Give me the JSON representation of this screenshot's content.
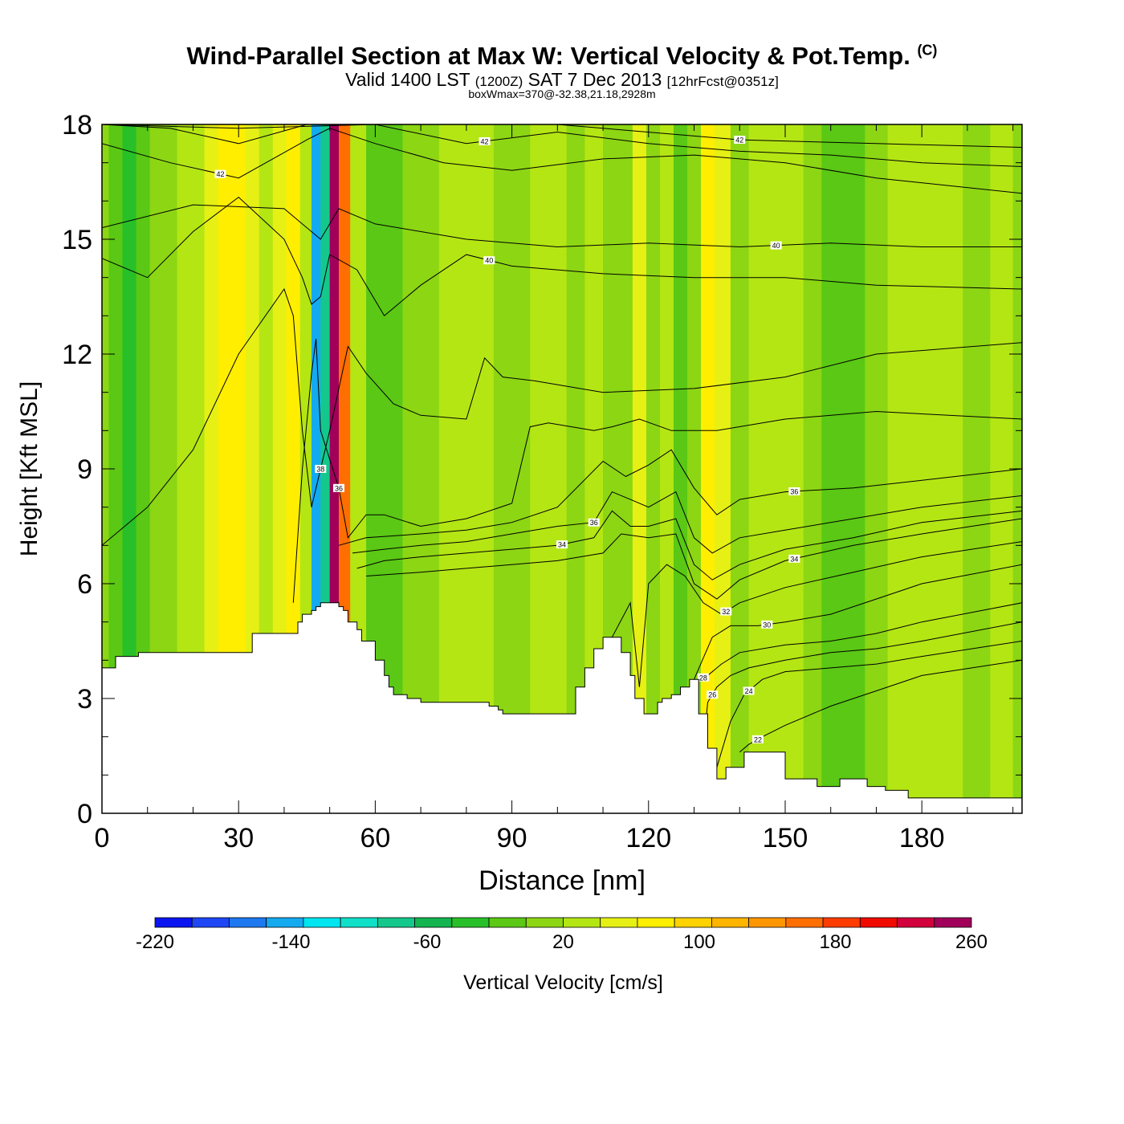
{
  "title": {
    "main": "Wind-Parallel Section at Max W: Vertical Velocity & Pot.Temp.",
    "copyright": "(C)",
    "valid_prefix": "Valid 1400 LST",
    "valid_utc": "(1200Z)",
    "valid_date": "SAT 7 Dec 2013",
    "forecast": "[12hrFcst@0351z]",
    "subtitle": "boxWmax=370@-32.38,21.18,2928m"
  },
  "chart_data": {
    "type": "heatmap",
    "xlabel": "Distance [nm]",
    "ylabel": "Height [Kft MSL]",
    "xlim": [
      0,
      202
    ],
    "ylim": [
      0,
      18
    ],
    "xticks": [
      0,
      30,
      60,
      90,
      120,
      150,
      180
    ],
    "yticks": [
      0,
      3,
      6,
      9,
      12,
      15,
      18
    ],
    "colorbar": {
      "label": "Vertical Velocity [cm/s]",
      "min": -220,
      "max": 260,
      "step": 20,
      "tick_labels": [
        "-220",
        "-140",
        "-60",
        "20",
        "100",
        "180",
        "260"
      ],
      "colors": [
        "#0a14f0",
        "#1e46f5",
        "#1e78f0",
        "#14aaf0",
        "#00e6f0",
        "#10e0c8",
        "#14c88c",
        "#14b450",
        "#28c028",
        "#5ac814",
        "#8cd614",
        "#b4e614",
        "#e6f014",
        "#ffee00",
        "#ffd200",
        "#ffb400",
        "#ff9600",
        "#ff6e00",
        "#ff3c00",
        "#f00a00",
        "#d2003c",
        "#a0005a"
      ]
    },
    "columns": {
      "x": [
        0,
        3,
        6,
        9,
        12,
        15,
        18,
        21,
        24,
        27,
        30,
        33,
        36,
        39,
        42,
        45,
        47,
        49,
        51,
        53,
        56,
        60,
        64,
        68,
        72,
        76,
        80,
        84,
        88,
        92,
        96,
        100,
        104,
        108,
        112,
        115,
        118,
        121,
        124,
        127,
        130,
        133,
        136,
        140,
        144,
        148,
        152,
        156,
        160,
        165,
        170,
        175,
        180,
        186,
        192,
        198,
        202
      ],
      "w_cm_s": [
        -20,
        -40,
        -50,
        -40,
        -20,
        -10,
        0,
        10,
        30,
        50,
        50,
        30,
        10,
        30,
        50,
        0,
        -150,
        -90,
        200,
        120,
        0,
        -40,
        -30,
        -20,
        -10,
        0,
        0,
        10,
        -10,
        -20,
        0,
        0,
        -10,
        0,
        -20,
        -10,
        30,
        -20,
        0,
        -40,
        -20,
        40,
        20,
        -20,
        0,
        0,
        0,
        -20,
        -30,
        -40,
        -20,
        0,
        10,
        0,
        -10,
        0,
        -10
      ]
    },
    "terrain": {
      "x": [
        0,
        2,
        3,
        8,
        20,
        26,
        33,
        37,
        42,
        43,
        44,
        45,
        46,
        47,
        48,
        49,
        50,
        51,
        52,
        53,
        54,
        56,
        57,
        60,
        62,
        63,
        64,
        66,
        67,
        70,
        75,
        80,
        85,
        87,
        88,
        95,
        100,
        102,
        104,
        106,
        108,
        110,
        112,
        114,
        116,
        117,
        119,
        120,
        121,
        122,
        123,
        125,
        127,
        129,
        131,
        133,
        135,
        137,
        141,
        145,
        150,
        155,
        157,
        162,
        168,
        172,
        177,
        182,
        190,
        202
      ],
      "h_kft": [
        3.8,
        3.8,
        4.1,
        4.2,
        4.2,
        4.2,
        4.7,
        4.7,
        4.7,
        5.0,
        5.2,
        5.2,
        5.3,
        5.4,
        5.5,
        5.5,
        5.5,
        5.5,
        5.4,
        5.3,
        5.0,
        4.8,
        4.5,
        4.0,
        3.6,
        3.3,
        3.1,
        3.1,
        3.0,
        2.9,
        2.9,
        2.9,
        2.8,
        2.7,
        2.6,
        2.6,
        2.6,
        2.6,
        3.3,
        3.8,
        4.3,
        4.6,
        4.6,
        4.2,
        3.6,
        3.0,
        2.6,
        2.6,
        2.6,
        2.9,
        3.0,
        3.1,
        3.3,
        3.5,
        2.6,
        1.7,
        0.9,
        1.2,
        1.6,
        1.6,
        0.9,
        0.9,
        0.7,
        0.9,
        0.7,
        0.6,
        0.4,
        0.4,
        0.4,
        0.4
      ]
    },
    "theta_contours": [
      {
        "label": "42",
        "x": [
          0,
          15,
          30,
          45,
          50,
          60,
          75,
          90,
          110,
          130,
          150,
          170,
          202
        ],
        "h_kft": [
          17.5,
          17.0,
          16.6,
          17.6,
          17.9,
          17.5,
          17.0,
          16.8,
          17.1,
          17.2,
          17.0,
          16.6,
          16.2
        ],
        "label_x": 26
      },
      {
        "label": "42",
        "x": [
          0,
          15,
          30,
          45,
          60,
          80,
          100,
          120,
          140,
          160,
          180,
          202
        ],
        "h_kft": [
          18.0,
          17.9,
          17.5,
          18.0,
          18.0,
          17.5,
          17.8,
          17.5,
          17.3,
          17.2,
          17.0,
          16.9
        ],
        "label_x": 84
      },
      {
        "label": "42",
        "x": [
          0,
          30,
          60,
          100,
          140,
          170,
          202
        ],
        "h_kft": [
          18.0,
          17.9,
          18.0,
          18.0,
          17.6,
          17.5,
          17.4
        ],
        "label_x": 140
      },
      {
        "label": "40",
        "x": [
          0,
          10,
          20,
          30,
          40,
          44,
          46,
          48,
          50,
          56,
          62,
          70,
          80,
          90,
          110,
          130,
          150,
          170,
          202
        ],
        "h_kft": [
          14.5,
          14.0,
          15.2,
          16.1,
          15.0,
          14.0,
          13.3,
          13.5,
          14.6,
          14.2,
          13.0,
          13.8,
          14.6,
          14.3,
          14.1,
          14.0,
          14.0,
          13.8,
          13.7
        ],
        "label_x": 85
      },
      {
        "label": "40",
        "x": [
          0,
          20,
          40,
          48,
          52,
          60,
          80,
          100,
          120,
          140,
          160,
          180,
          202
        ],
        "h_kft": [
          15.3,
          15.9,
          15.8,
          15.0,
          15.8,
          15.4,
          15.0,
          14.8,
          14.9,
          14.8,
          14.9,
          14.8,
          14.8
        ],
        "label_x": 148
      },
      {
        "label": "38",
        "x": [
          0,
          10,
          20,
          30,
          40,
          42,
          44,
          46,
          48,
          50,
          54,
          58,
          64,
          70,
          80,
          84,
          88,
          95,
          110,
          130,
          150,
          170,
          202
        ],
        "h_kft": [
          7.0,
          8.0,
          9.5,
          12.0,
          13.7,
          13.0,
          10.0,
          8.0,
          9.0,
          10.0,
          12.2,
          11.5,
          10.7,
          10.4,
          10.3,
          11.9,
          11.4,
          11.3,
          11.0,
          11.1,
          11.4,
          12.0,
          12.3
        ],
        "label_x": 48
      },
      {
        "label": "36",
        "x": [
          42,
          44,
          46,
          47,
          48,
          52,
          54,
          58,
          62,
          70,
          80,
          90,
          94,
          98,
          108,
          112,
          118,
          125,
          135,
          150,
          170,
          202
        ],
        "h_kft": [
          5.5,
          9.0,
          11.5,
          12.4,
          10.0,
          8.5,
          7.2,
          7.8,
          7.8,
          7.5,
          7.7,
          8.1,
          10.1,
          10.2,
          10.0,
          10.1,
          10.3,
          10.0,
          10.0,
          10.3,
          10.5,
          10.3
        ],
        "label_x": 52
      },
      {
        "label": "36",
        "x": [
          52,
          58,
          70,
          80,
          90,
          100,
          110,
          115,
          120,
          125,
          130,
          135,
          140,
          150,
          165,
          180,
          202
        ],
        "h_kft": [
          7.0,
          7.2,
          7.3,
          7.4,
          7.6,
          8.0,
          9.2,
          8.8,
          9.1,
          9.5,
          8.5,
          7.8,
          8.2,
          8.4,
          8.5,
          8.7,
          9.0
        ],
        "label_x": 152
      },
      {
        "label": "36",
        "x": [
          55,
          62,
          70,
          80,
          90,
          100,
          108,
          112,
          116,
          120,
          126,
          130,
          134,
          140,
          150,
          165,
          180,
          202
        ],
        "h_kft": [
          6.8,
          6.9,
          7.0,
          7.1,
          7.3,
          7.5,
          7.6,
          8.4,
          8.2,
          8.0,
          8.4,
          7.2,
          6.8,
          7.2,
          7.4,
          7.7,
          8.0,
          8.3
        ],
        "label_x": 108
      },
      {
        "label": "34",
        "x": [
          56,
          62,
          70,
          80,
          90,
          100,
          108,
          112,
          116,
          120,
          126,
          130,
          134,
          140,
          150,
          165,
          180,
          202
        ],
        "h_kft": [
          6.4,
          6.6,
          6.7,
          6.8,
          6.9,
          7.0,
          7.2,
          7.9,
          7.5,
          7.5,
          7.7,
          6.5,
          6.1,
          6.5,
          6.9,
          7.2,
          7.6,
          7.9
        ],
        "label_x": 101
      },
      {
        "label": "34",
        "x": [
          58,
          70,
          80,
          90,
          100,
          110,
          114,
          120,
          126,
          130,
          135,
          140,
          150,
          165,
          180,
          202
        ],
        "h_kft": [
          6.2,
          6.3,
          6.4,
          6.5,
          6.6,
          6.8,
          7.3,
          7.2,
          7.3,
          6.0,
          5.6,
          6.1,
          6.6,
          7.0,
          7.3,
          7.7
        ],
        "label_x": 152
      },
      {
        "label": "32",
        "x": [
          112,
          116,
          118,
          120,
          124,
          128,
          132,
          136,
          140,
          150,
          165,
          180,
          202
        ],
        "h_kft": [
          4.6,
          5.5,
          3.3,
          6.0,
          6.5,
          6.2,
          5.5,
          5.2,
          5.5,
          5.9,
          6.3,
          6.7,
          7.1
        ],
        "label_x": 137
      },
      {
        "label": "30",
        "x": [
          130,
          134,
          138,
          144,
          150,
          160,
          170,
          180,
          202
        ],
        "h_kft": [
          3.5,
          4.6,
          4.9,
          4.9,
          5.0,
          5.2,
          5.6,
          6.0,
          6.5
        ],
        "label_x": 146
      },
      {
        "label": "28",
        "x": [
          129,
          131,
          133,
          136,
          140,
          150,
          160,
          170,
          180,
          202
        ],
        "h_kft": [
          3.1,
          3.5,
          3.6,
          3.9,
          4.2,
          4.4,
          4.5,
          4.7,
          5.0,
          5.5
        ],
        "label_x": 132
      },
      {
        "label": "26",
        "x": [
          132,
          133,
          135,
          138,
          142,
          150,
          160,
          170,
          180,
          202
        ],
        "h_kft": [
          1.7,
          2.9,
          3.3,
          3.6,
          3.8,
          4.0,
          4.2,
          4.3,
          4.5,
          5.0
        ],
        "label_x": 134
      },
      {
        "label": "24",
        "x": [
          135,
          138,
          141,
          145,
          150,
          160,
          170,
          180,
          202
        ],
        "h_kft": [
          1.2,
          2.4,
          3.1,
          3.5,
          3.7,
          3.8,
          3.9,
          4.1,
          4.5
        ],
        "label_x": 142
      },
      {
        "label": "22",
        "x": [
          140,
          142,
          145,
          150,
          160,
          170,
          180,
          202
        ],
        "h_kft": [
          1.6,
          1.8,
          2.0,
          2.3,
          2.8,
          3.2,
          3.6,
          4.0
        ],
        "label_x": 144
      }
    ]
  }
}
